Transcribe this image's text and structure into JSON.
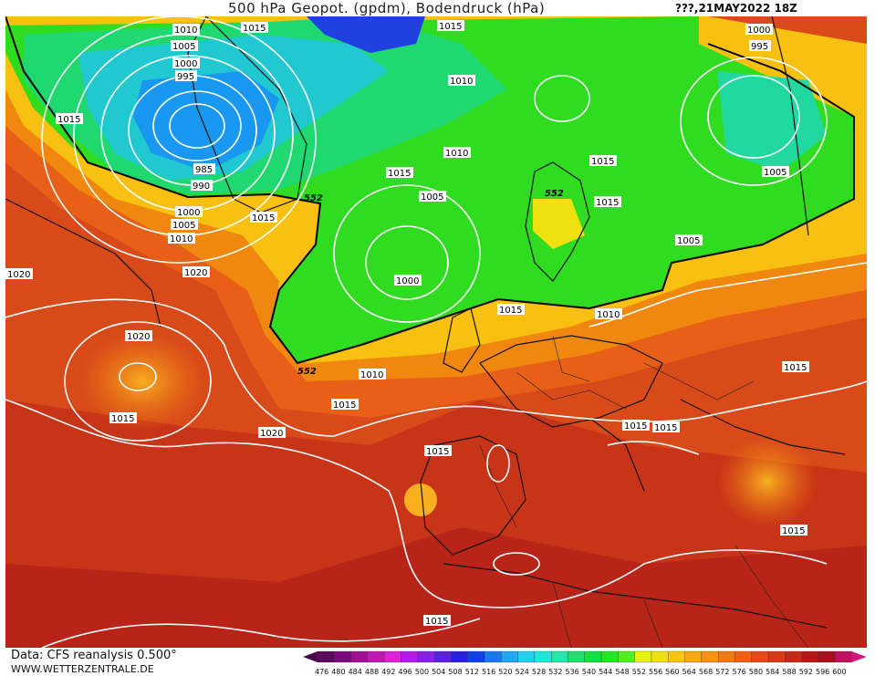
{
  "title": "500 hPa Geopot. (gpdm), Bodendruck (hPa)",
  "run": "???,21MAY2022 18Z",
  "footer": {
    "data_source": "Data: CFS reanalysis 0.500°",
    "website": "WWW.WETTERZENTRALE.DE"
  },
  "geopotential_labels": [
    "552",
    "552",
    "552"
  ],
  "pressure_labels": [
    "1010",
    "1015",
    "1005",
    "1000",
    "995",
    "985",
    "990",
    "1000",
    "1005",
    "1010",
    "1015",
    "1015",
    "1020",
    "1020",
    "1015",
    "1020",
    "1015",
    "1015",
    "1010",
    "1005",
    "1000",
    "1010",
    "1015",
    "1010",
    "1015",
    "1020",
    "1015",
    "1010",
    "1015",
    "1015",
    "1015",
    "1005",
    "1015",
    "1015",
    "1015",
    "1000",
    "995",
    "1005",
    "1015"
  ],
  "colorbar": {
    "ticks": [
      "476",
      "480",
      "484",
      "488",
      "492",
      "496",
      "500",
      "504",
      "508",
      "512",
      "516",
      "520",
      "524",
      "528",
      "532",
      "536",
      "540",
      "544",
      "548",
      "552",
      "556",
      "560",
      "564",
      "568",
      "572",
      "576",
      "580",
      "584",
      "588",
      "592",
      "596",
      "600"
    ],
    "colors": [
      "#5a0a5a",
      "#7a0a7a",
      "#a01090",
      "#c018b0",
      "#e020d8",
      "#b818f0",
      "#8820e8",
      "#5a20e0",
      "#2820e0",
      "#1040e8",
      "#1878f0",
      "#20a8f0",
      "#20d0f0",
      "#20e8d8",
      "#20e8a8",
      "#20e070",
      "#10e040",
      "#20e820",
      "#50f020",
      "#e8f010",
      "#f0e010",
      "#f8c810",
      "#f8a810",
      "#f89010",
      "#f07810",
      "#f06010",
      "#e84818",
      "#d83818",
      "#c82818",
      "#b81818",
      "#a81020",
      "#c01060"
    ]
  }
}
